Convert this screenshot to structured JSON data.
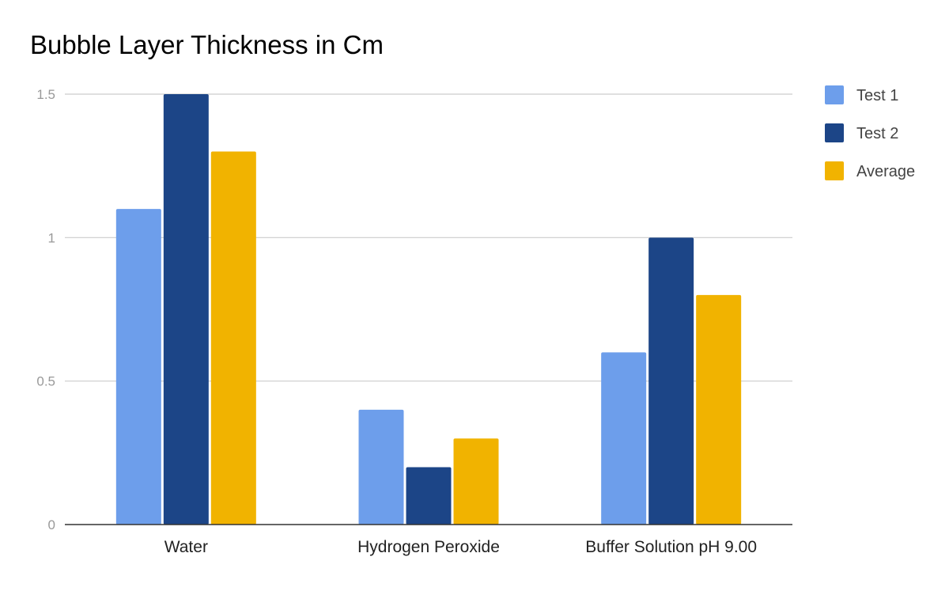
{
  "chart_data": {
    "type": "bar",
    "title": "Bubble Layer Thickness in Cm",
    "xlabel": "",
    "ylabel": "",
    "categories": [
      "Water",
      "Hydrogen Peroxide",
      "Buffer Solution pH 9.00"
    ],
    "series": [
      {
        "name": "Test 1",
        "values": [
          1.1,
          0.4,
          0.6
        ],
        "color": "#6d9eeb"
      },
      {
        "name": "Test 2",
        "values": [
          1.5,
          0.2,
          1.0
        ],
        "color": "#1c4587"
      },
      {
        "name": "Average",
        "values": [
          1.3,
          0.3,
          0.8
        ],
        "color": "#f1b300"
      }
    ],
    "ylim": [
      0,
      1.5
    ],
    "yticks": [
      {
        "value": 0,
        "label": "0"
      },
      {
        "value": 0.5,
        "label": "0.5"
      },
      {
        "value": 1,
        "label": "1"
      },
      {
        "value": 1.5,
        "label": "1.5"
      }
    ],
    "grid": true,
    "legend_position": "right"
  }
}
